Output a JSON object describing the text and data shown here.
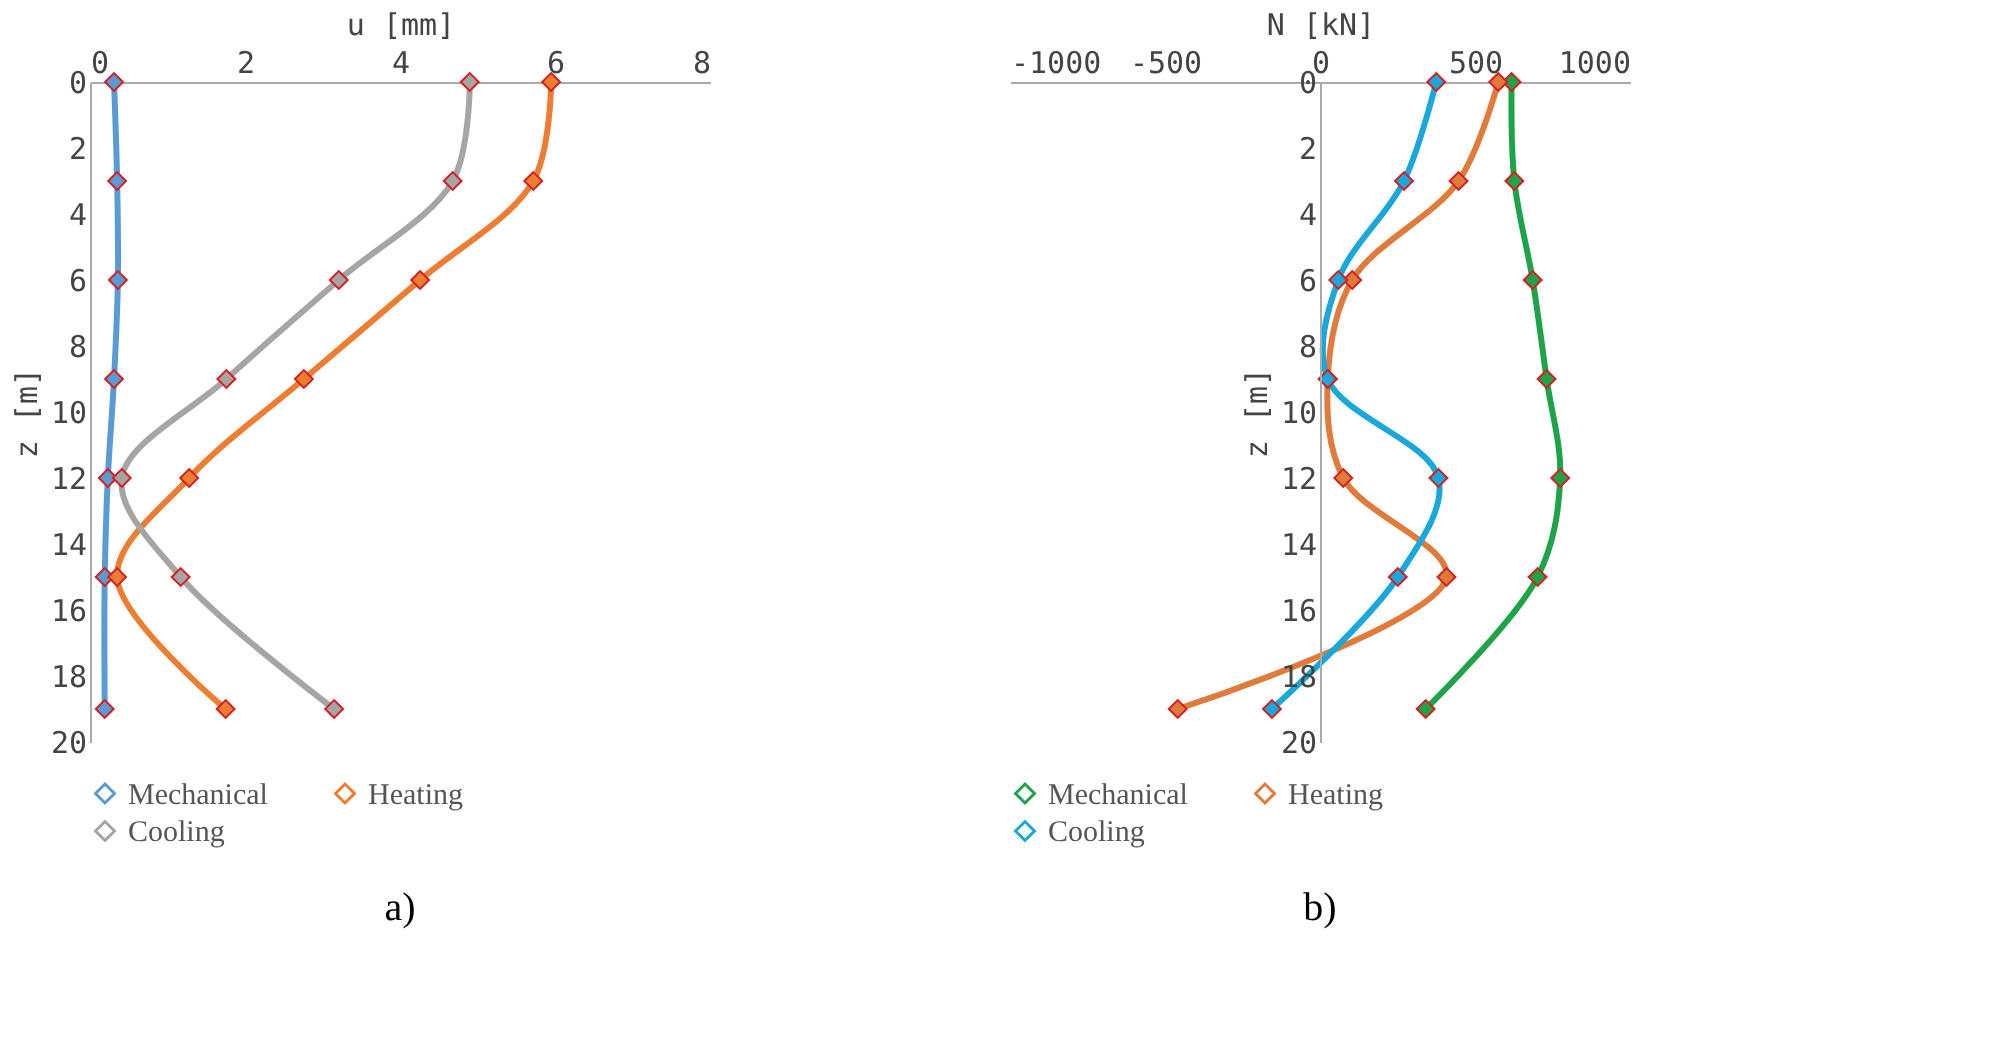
{
  "chart_data": [
    {
      "type": "line",
      "xlabel": "u [mm]",
      "ylabel": "z [m]",
      "xlim": [
        0,
        8
      ],
      "xticks": [
        0,
        2,
        4,
        6,
        8
      ],
      "ylim": [
        20,
        0
      ],
      "yticks": [
        0,
        2,
        4,
        6,
        8,
        10,
        12,
        14,
        16,
        18,
        20
      ],
      "grid": false,
      "legend": "bottom",
      "marker": "diamond",
      "annotations": [
        "a)"
      ],
      "series": [
        {
          "name": "Mechanical",
          "color": "#5b9bd5",
          "x": [
            0.31,
            0.35,
            0.36,
            0.31,
            0.23,
            0.19,
            0.19
          ],
          "values": [
            0,
            3,
            6,
            9,
            12,
            15,
            19
          ]
        },
        {
          "name": "Heating",
          "color": "#ed7d31",
          "x": [
            5.95,
            5.72,
            4.26,
            2.76,
            1.28,
            0.35,
            1.75
          ],
          "values": [
            0,
            3,
            6,
            9,
            12,
            15,
            19
          ]
        },
        {
          "name": "Cooling",
          "color": "#a5a5a5",
          "x": [
            4.9,
            4.68,
            3.21,
            1.76,
            0.41,
            1.17,
            3.15
          ],
          "values": [
            0,
            3,
            6,
            9,
            12,
            15,
            19
          ]
        }
      ]
    },
    {
      "type": "line",
      "xlabel": "N [kN]",
      "ylabel": "z [m]",
      "xlim": [
        -1000,
        1000
      ],
      "xticks": [
        -1000,
        -500,
        0,
        500,
        1000
      ],
      "ylim": [
        20,
        0
      ],
      "yticks": [
        0,
        2,
        4,
        6,
        8,
        10,
        12,
        14,
        16,
        18,
        20
      ],
      "grid": false,
      "legend": "bottom",
      "marker": "diamond",
      "annotations": [
        "b)"
      ],
      "series": [
        {
          "name": "Mechanical",
          "color": "#1fa34a",
          "x": [
            618,
            627,
            686,
            731,
            775,
            702,
            341
          ],
          "values": [
            0,
            3,
            6,
            9,
            12,
            15,
            19
          ]
        },
        {
          "name": "Heating",
          "color": "#e07b39",
          "x": [
            575,
            447,
            104,
            25,
            75,
            408,
            -459
          ],
          "values": [
            0,
            3,
            6,
            9,
            12,
            15,
            19
          ]
        },
        {
          "name": "Cooling",
          "color": "#1aa7dc",
          "x": [
            375,
            271,
            59,
            25,
            382,
            251,
            -155
          ],
          "values": [
            0,
            3,
            6,
            9,
            12,
            15,
            19
          ]
        }
      ]
    }
  ]
}
